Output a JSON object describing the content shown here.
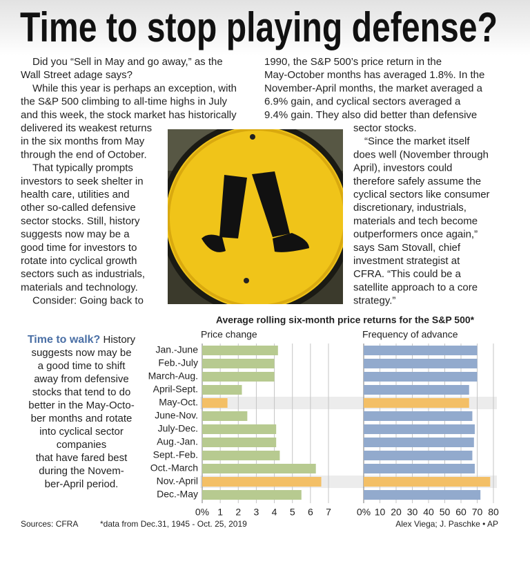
{
  "headline": "Time to stop playing defense?",
  "article": {
    "left_column": [
      "Did you “Sell in May and go away,” as the",
      "Wall Street adage says?",
      "While this year is perhaps an exception, with",
      "the S&P 500 climbing to all-time highs in July",
      "and this week, the stock market has historically",
      "delivered its weakest returns",
      "in the six months from May",
      "through the end of October.",
      "That typically prompts",
      "investors to seek shelter in",
      "health care, utilities and",
      "other so-called defensive",
      "sector stocks. Still, history",
      "suggests now may be a",
      "good time for investors to",
      "rotate into cyclical growth",
      "sectors such as industrials,",
      "materials and technology.",
      "Consider: Going back to"
    ],
    "right_column": [
      "1990, the S&P 500’s price return in the",
      "May-October months has averaged 1.8%. In the",
      "November-April months, the market averaged a",
      "6.9% gain, and cyclical sectors averaged a",
      "9.4% gain. They also did better than defensive",
      "sector stocks.",
      "“Since the market itself",
      "does well (November through",
      "April), investors could",
      "therefore safely assume the",
      "cyclical sectors like consumer",
      "discretionary, industrials,",
      "materials and tech become",
      "outperformers once again,”",
      "says Sam Stovall, chief",
      "investment strategist at",
      "CFRA. “This could be a",
      "satellite approach to a core",
      "strategy.”"
    ]
  },
  "sidebar": {
    "title": "Time to walk?",
    "lines": [
      "History",
      "suggests now may be",
      "a good time to shift",
      "away from defensive",
      "stocks that tend to do",
      "better in the May-Octo-",
      "ber months and rotate",
      "into cyclical sector",
      "companies",
      "that have fared best",
      "during the Novem-",
      "ber-April period."
    ]
  },
  "graphic": {
    "title": "Average rolling six-month price returns for the S&P 500*",
    "sources": "Sources: CFRA",
    "footnote": "*data from Dec.31, 1945 - Oct. 25, 2019",
    "credit": "Alex Viega; J. Paschke • AP"
  },
  "chart_data": [
    {
      "type": "bar",
      "orientation": "horizontal",
      "title": "Price change",
      "categories": [
        "Jan.-June",
        "Feb.-July",
        "March-Aug.",
        "April-Sept.",
        "May-Oct.",
        "June-Nov.",
        "July-Dec.",
        "Aug.-Jan.",
        "Sept.-Feb.",
        "Oct.-March",
        "Nov.-April",
        "Dec.-May"
      ],
      "values": [
        4.2,
        4.0,
        4.0,
        2.2,
        1.4,
        2.5,
        4.1,
        4.1,
        4.3,
        6.3,
        6.6,
        5.5
      ],
      "colors": [
        "#b7ca90",
        "#b7ca90",
        "#b7ca90",
        "#b7ca90",
        "#f3bf66",
        "#b7ca90",
        "#b7ca90",
        "#b7ca90",
        "#b7ca90",
        "#b7ca90",
        "#f3bf66",
        "#b7ca90"
      ],
      "xlim": [
        0,
        7
      ],
      "xticks": [
        {
          "value": 0,
          "label": "0%"
        },
        1,
        2,
        3,
        4,
        5,
        6,
        7
      ],
      "grid": true
    },
    {
      "type": "bar",
      "orientation": "horizontal",
      "title": "Frequency of advance",
      "values": [
        70,
        70,
        70,
        65,
        65,
        67,
        68.5,
        68,
        67,
        68.5,
        78,
        72
      ],
      "colors": [
        "#92aacd",
        "#92aacd",
        "#92aacd",
        "#92aacd",
        "#f3bf66",
        "#92aacd",
        "#92aacd",
        "#92aacd",
        "#92aacd",
        "#92aacd",
        "#f3bf66",
        "#92aacd"
      ],
      "xlim": [
        0,
        80
      ],
      "xticks": [
        {
          "value": 0,
          "label": "0%"
        },
        10,
        20,
        30,
        40,
        50,
        60,
        70,
        80
      ],
      "grid": true
    }
  ]
}
